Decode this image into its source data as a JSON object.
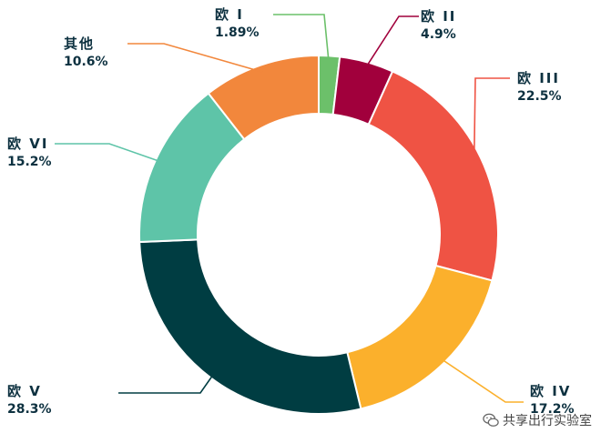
{
  "chart_data": {
    "type": "pie",
    "variant": "donut",
    "slices": [
      {
        "label": "欧 I",
        "value_label": "1.89%",
        "value": 1.89,
        "color": "#6cc06a"
      },
      {
        "label": "欧 II",
        "value_label": "4.9%",
        "value": 4.9,
        "color": "#a1003c"
      },
      {
        "label": "欧 III",
        "value_label": "22.5%",
        "value": 22.5,
        "color": "#ef5344"
      },
      {
        "label": "欧 IV",
        "value_label": "17.2%",
        "value": 17.2,
        "color": "#fbb02c"
      },
      {
        "label": "欧 V",
        "value_label": "28.3%",
        "value": 28.3,
        "color": "#003d42"
      },
      {
        "label": "欧 VI",
        "value_label": "15.2%",
        "value": 15.2,
        "color": "#5ec4a8"
      },
      {
        "label": "其他",
        "value_label": "10.6%",
        "value": 10.6,
        "color": "#f2873c"
      }
    ],
    "text_color": "#0d3140",
    "legend": "none"
  },
  "watermark": {
    "text": "共享出行实验室",
    "icon": "wechat-icon"
  }
}
